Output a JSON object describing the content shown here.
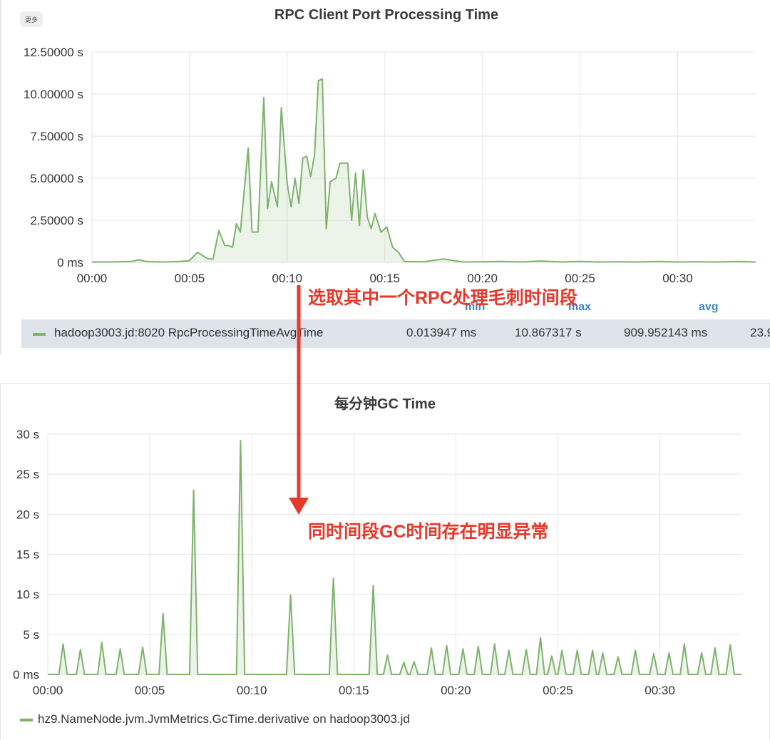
{
  "top_panel": {
    "badge": "更多",
    "legend": {
      "series": "hadoop3003.jd:8020 RpcProcessingTimeAvgTime",
      "headers": {
        "min": "min",
        "max": "max",
        "avg": "avg"
      },
      "min": "0.013947 ms",
      "max": "10.867317 s",
      "avg": "909.952143 ms",
      "extra": "23.9"
    }
  },
  "bottom_panel": {
    "legend": {
      "series": "hz9.NameNode.jvm.JvmMetrics.GcTime.derivative on hadoop3003.jd"
    }
  },
  "annotations": {
    "arrow_label_1": "选取其中一个RPC处理毛刺时间段",
    "arrow_label_2": "同时间段GC时间存在明显异常"
  },
  "colors": {
    "series": "#7eb26d",
    "fill": "rgba(126,178,109,0.15)",
    "annotation": "#e5392b",
    "stat_header": "#3f86c4"
  },
  "chart_data": [
    {
      "type": "area",
      "title": "RPC Client Port Processing Time",
      "unit": "s",
      "x_ticks": [
        "00:00",
        "00:05",
        "00:10",
        "00:15",
        "00:20",
        "00:25",
        "00:30"
      ],
      "y_ticks": [
        "0 ms",
        "2.50000 s",
        "5.00000 s",
        "7.50000 s",
        "10.00000 s",
        "12.50000 s"
      ],
      "xlim": [
        0,
        34
      ],
      "ylim": [
        0,
        12.5
      ],
      "grid": true,
      "series": [
        {
          "name": "hadoop3003.jd:8020 RpcProcessingTimeAvgTime",
          "x": [
            0,
            1,
            2,
            2.4,
            2.8,
            3.5,
            4,
            4.5,
            5,
            5.4,
            5.8,
            6,
            6.2,
            6.5,
            6.8,
            7,
            7.2,
            7.4,
            7.6,
            8,
            8.2,
            8.5,
            8.8,
            9,
            9.2,
            9.5,
            9.7,
            10,
            10.2,
            10.4,
            10.6,
            10.8,
            11,
            11.2,
            11.4,
            11.6,
            11.8,
            12,
            12.2,
            12.5,
            12.7,
            12.9,
            13.1,
            13.3,
            13.5,
            13.7,
            13.9,
            14.1,
            14.3,
            14.5,
            14.8,
            15.1,
            15.4,
            15.7,
            16,
            17,
            18,
            19,
            20,
            21,
            22,
            23,
            24,
            25,
            26,
            27,
            28,
            29,
            30,
            31,
            32,
            33,
            34
          ],
          "y": [
            0.02,
            0.02,
            0.05,
            0.15,
            0.05,
            0.02,
            0.03,
            0.05,
            0.1,
            0.6,
            0.3,
            0.2,
            0.2,
            1.9,
            1.0,
            1.0,
            0.9,
            2.3,
            1.8,
            6.8,
            1.8,
            1.8,
            9.8,
            3.2,
            4.8,
            3.3,
            9.2,
            4.7,
            3.3,
            5.0,
            3.5,
            6.2,
            6.3,
            5.1,
            6.4,
            10.8,
            10.9,
            2.0,
            4.8,
            5.0,
            5.9,
            5.9,
            5.9,
            2.5,
            5.3,
            2.2,
            5.5,
            2.7,
            2.0,
            2.9,
            1.8,
            2.1,
            0.9,
            0.6,
            0.05,
            0.03,
            0.2,
            0.02,
            0.03,
            0.05,
            0.02,
            0.08,
            0.02,
            0.05,
            0.02,
            0.03,
            0.02,
            0.05,
            0.02,
            0.03,
            0.02,
            0.05,
            0.02
          ]
        }
      ]
    },
    {
      "type": "area",
      "title": "每分钟GC Time",
      "unit": "s",
      "x_ticks": [
        "00:00",
        "00:05",
        "00:10",
        "00:15",
        "00:20",
        "00:25",
        "00:30"
      ],
      "y_ticks": [
        "0 ms",
        "5 s",
        "10 s",
        "15 s",
        "20 s",
        "25 s",
        "30 s"
      ],
      "xlim": [
        0,
        34
      ],
      "ylim": [
        0,
        30
      ],
      "grid": true,
      "series": [
        {
          "name": "hz9.NameNode.jvm.JvmMetrics.GcTime.derivative on hadoop3003.jd",
          "peaks": [
            [
              0.75,
              3.8
            ],
            [
              1.6,
              3.1
            ],
            [
              2.65,
              4.0
            ],
            [
              3.55,
              3.2
            ],
            [
              4.65,
              3.4
            ],
            [
              5.65,
              7.6
            ],
            [
              7.15,
              23.0
            ],
            [
              9.45,
              29.2
            ],
            [
              11.9,
              9.9
            ],
            [
              14.0,
              12.0
            ],
            [
              15.95,
              11.1
            ],
            [
              16.65,
              2.4
            ],
            [
              17.45,
              1.5
            ],
            [
              17.95,
              1.6
            ],
            [
              18.8,
              3.3
            ],
            [
              19.55,
              3.6
            ],
            [
              20.35,
              3.2
            ],
            [
              21.1,
              3.5
            ],
            [
              21.9,
              3.8
            ],
            [
              22.6,
              3.0
            ],
            [
              23.45,
              3.1
            ],
            [
              24.15,
              4.6
            ],
            [
              24.7,
              2.3
            ],
            [
              25.2,
              3.0
            ],
            [
              25.95,
              3.0
            ],
            [
              26.7,
              3.0
            ],
            [
              27.2,
              2.7
            ],
            [
              27.95,
              2.2
            ],
            [
              28.8,
              3.0
            ],
            [
              29.7,
              2.6
            ],
            [
              30.45,
              2.7
            ],
            [
              31.2,
              3.8
            ],
            [
              32.05,
              2.7
            ],
            [
              32.7,
              3.3
            ],
            [
              33.45,
              3.7
            ]
          ],
          "baseline": 0
        }
      ]
    }
  ]
}
